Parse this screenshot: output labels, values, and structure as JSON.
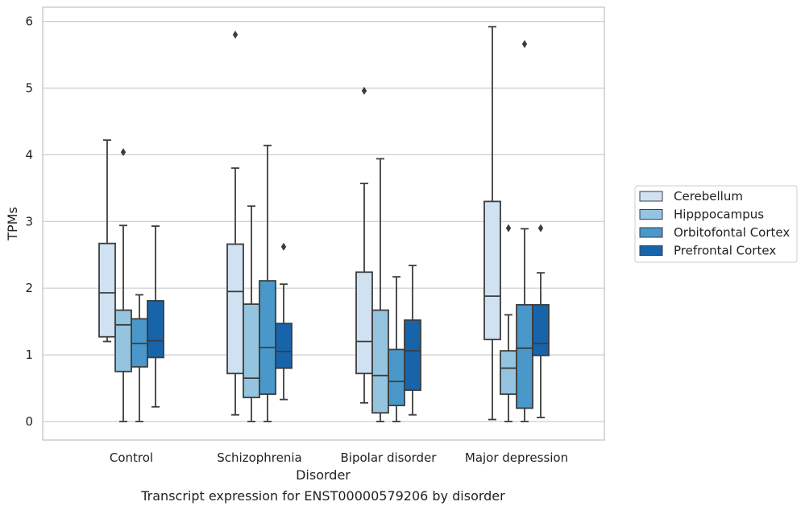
{
  "chart_data": {
    "type": "box",
    "xlabel": "Disorder",
    "ylabel": "TPMs",
    "caption": "Transcript expression for ENST00000579206 by disorder",
    "ylim": [
      -0.28,
      6.22
    ],
    "yticks": [
      0,
      1,
      2,
      3,
      4,
      5,
      6
    ],
    "grid": "horizontal",
    "legend_position": "right",
    "categories": [
      "Control",
      "Schizophrenia",
      "Bipolar disorder",
      "Major depression"
    ],
    "series": [
      {
        "name": "Cerebellum",
        "color": "#d0e1f2",
        "boxes": [
          {
            "min": 1.2,
            "q1": 1.27,
            "median": 1.93,
            "q3": 2.67,
            "max": 4.22,
            "outliers": []
          },
          {
            "min": 0.1,
            "q1": 0.72,
            "median": 1.95,
            "q3": 2.66,
            "max": 3.8,
            "outliers": [
              5.8
            ]
          },
          {
            "min": 0.28,
            "q1": 0.72,
            "median": 1.2,
            "q3": 2.24,
            "max": 3.57,
            "outliers": [
              4.96
            ]
          },
          {
            "min": 0.03,
            "q1": 1.23,
            "median": 1.88,
            "q3": 3.3,
            "max": 5.92,
            "outliers": []
          }
        ]
      },
      {
        "name": "Hipppocampus",
        "color": "#94c4df",
        "boxes": [
          {
            "min": 0.0,
            "q1": 0.75,
            "median": 1.45,
            "q3": 1.67,
            "max": 2.94,
            "outliers": [
              4.04
            ]
          },
          {
            "min": 0.0,
            "q1": 0.36,
            "median": 0.65,
            "q3": 1.76,
            "max": 3.23,
            "outliers": []
          },
          {
            "min": 0.0,
            "q1": 0.13,
            "median": 0.69,
            "q3": 1.67,
            "max": 3.94,
            "outliers": []
          },
          {
            "min": 0.0,
            "q1": 0.41,
            "median": 0.8,
            "q3": 1.06,
            "max": 1.6,
            "outliers": [
              2.9
            ]
          }
        ]
      },
      {
        "name": "Orbitofontal Cortex",
        "color": "#4a98c9",
        "boxes": [
          {
            "min": 0.0,
            "q1": 0.82,
            "median": 1.17,
            "q3": 1.54,
            "max": 1.9,
            "outliers": []
          },
          {
            "min": 0.0,
            "q1": 0.41,
            "median": 1.11,
            "q3": 2.11,
            "max": 4.14,
            "outliers": []
          },
          {
            "min": 0.0,
            "q1": 0.24,
            "median": 0.6,
            "q3": 1.08,
            "max": 2.17,
            "outliers": []
          },
          {
            "min": 0.0,
            "q1": 0.2,
            "median": 1.1,
            "q3": 1.75,
            "max": 2.89,
            "outliers": [
              5.66
            ]
          }
        ]
      },
      {
        "name": "Prefrontal Cortex",
        "color": "#1764ab",
        "boxes": [
          {
            "min": 0.22,
            "q1": 0.96,
            "median": 1.21,
            "q3": 1.81,
            "max": 2.93,
            "outliers": []
          },
          {
            "min": 0.33,
            "q1": 0.8,
            "median": 1.05,
            "q3": 1.47,
            "max": 2.06,
            "outliers": [
              2.62
            ]
          },
          {
            "min": 0.1,
            "q1": 0.47,
            "median": 1.06,
            "q3": 1.52,
            "max": 2.34,
            "outliers": []
          },
          {
            "min": 0.06,
            "q1": 0.99,
            "median": 1.17,
            "q3": 1.75,
            "max": 2.23,
            "outliers": [
              2.9
            ]
          }
        ]
      }
    ]
  }
}
